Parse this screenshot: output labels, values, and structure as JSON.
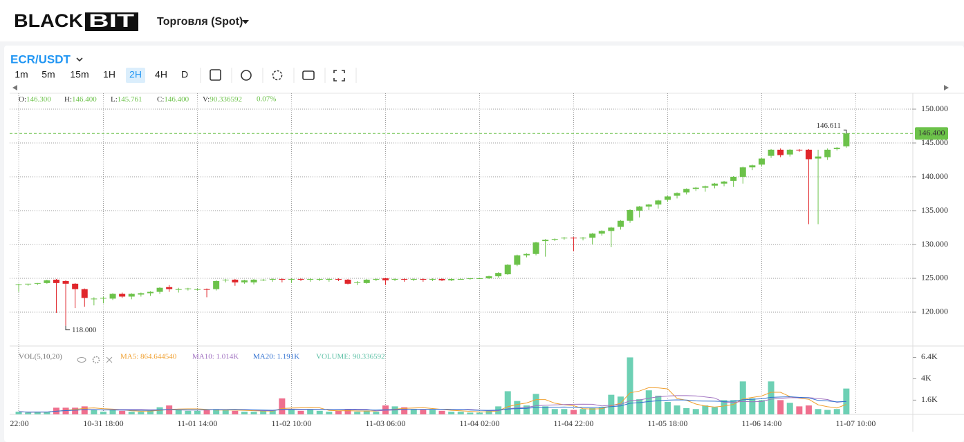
{
  "header": {
    "logo_a": "BLACK",
    "logo_b": "BIT",
    "menu": "Торговля (Spot)"
  },
  "pair": "ECR/USDT",
  "intervals": [
    "1m",
    "5m",
    "15m",
    "1H",
    "2H",
    "4H",
    "D"
  ],
  "active_interval": "2H",
  "chart_data": {
    "type": "candlestick",
    "up_color": "#6cc24a",
    "down_color": "#e0262b",
    "legend": [
      {
        "label": "O:",
        "value": "146.300"
      },
      {
        "label": "H:",
        "value": "146.400"
      },
      {
        "label": "L:",
        "value": "145.761"
      },
      {
        "label": "C:",
        "value": "146.400"
      },
      {
        "label": "V:",
        "value": "90.336592"
      }
    ],
    "change": "0.07%",
    "candles": [
      [
        124.1,
        124.2,
        123.0,
        124.1
      ],
      [
        124.1,
        124.2,
        123.9,
        124.2
      ],
      [
        124.2,
        124.3,
        124.0,
        124.3
      ],
      [
        124.3,
        124.8,
        124.2,
        124.7
      ],
      [
        124.8,
        124.9,
        119.9,
        124.3
      ],
      [
        124.6,
        124.7,
        118.0,
        124.2
      ],
      [
        124.2,
        124.3,
        120.6,
        123.4
      ],
      [
        123.4,
        123.5,
        120.8,
        122.1
      ],
      [
        122.0,
        122.2,
        121.0,
        122.0
      ],
      [
        122.0,
        122.3,
        121.3,
        122.1
      ],
      [
        122.0,
        122.8,
        121.8,
        122.7
      ],
      [
        122.7,
        122.9,
        122.1,
        122.3
      ],
      [
        122.3,
        122.8,
        121.9,
        122.7
      ],
      [
        122.6,
        122.9,
        122.3,
        122.8
      ],
      [
        122.8,
        123.1,
        122.4,
        123.0
      ],
      [
        123.0,
        123.7,
        122.7,
        123.6
      ],
      [
        123.7,
        124.0,
        123.0,
        123.4
      ],
      [
        123.3,
        123.6,
        122.9,
        123.4
      ],
      [
        123.4,
        123.6,
        123.2,
        123.5
      ],
      [
        123.4,
        123.5,
        123.2,
        123.4
      ],
      [
        123.4,
        123.5,
        122.2,
        123.3
      ],
      [
        123.4,
        124.7,
        123.2,
        124.6
      ],
      [
        124.7,
        124.9,
        124.4,
        124.8
      ],
      [
        124.8,
        124.9,
        123.9,
        124.4
      ],
      [
        124.4,
        124.8,
        124.2,
        124.7
      ],
      [
        124.4,
        124.9,
        124.1,
        124.8
      ],
      [
        124.8,
        124.9,
        124.6,
        124.8
      ],
      [
        124.8,
        125.0,
        124.5,
        124.9
      ],
      [
        124.9,
        125.0,
        124.4,
        124.8
      ],
      [
        124.8,
        125.0,
        124.3,
        124.9
      ],
      [
        124.9,
        125.0,
        124.6,
        124.8
      ],
      [
        124.8,
        125.0,
        124.5,
        124.9
      ],
      [
        124.9,
        125.0,
        124.6,
        124.9
      ],
      [
        124.9,
        125.0,
        124.5,
        124.9
      ],
      [
        124.9,
        125.0,
        124.6,
        124.8
      ],
      [
        124.8,
        124.9,
        124.1,
        124.2
      ],
      [
        124.4,
        124.6,
        124.0,
        124.4
      ],
      [
        124.3,
        124.9,
        124.2,
        124.8
      ],
      [
        124.8,
        125.0,
        124.6,
        124.9
      ],
      [
        125.0,
        125.1,
        124.0,
        124.7
      ],
      [
        124.8,
        125.0,
        124.6,
        124.9
      ],
      [
        124.9,
        125.0,
        124.5,
        124.8
      ],
      [
        124.8,
        125.0,
        124.6,
        124.9
      ],
      [
        124.9,
        125.0,
        124.5,
        124.8
      ],
      [
        124.8,
        125.0,
        124.6,
        124.9
      ],
      [
        124.9,
        125.0,
        124.6,
        124.7
      ],
      [
        124.7,
        125.0,
        124.6,
        124.9
      ],
      [
        124.9,
        125.0,
        124.8,
        124.9
      ],
      [
        124.9,
        125.0,
        124.8,
        125.0
      ],
      [
        125.0,
        125.1,
        124.9,
        125.0
      ],
      [
        125.0,
        125.4,
        124.9,
        125.3
      ],
      [
        125.3,
        125.9,
        125.1,
        125.8
      ],
      [
        125.6,
        127.1,
        125.5,
        127.0
      ],
      [
        127.0,
        128.5,
        126.8,
        128.4
      ],
      [
        128.4,
        128.7,
        128.1,
        128.6
      ],
      [
        128.6,
        130.4,
        128.4,
        130.3
      ],
      [
        130.5,
        130.8,
        128.2,
        130.7
      ],
      [
        130.7,
        130.9,
        130.5,
        130.8
      ],
      [
        130.9,
        131.1,
        130.7,
        131.0
      ],
      [
        131.0,
        131.1,
        129.0,
        130.9
      ],
      [
        130.9,
        131.1,
        130.6,
        131.0
      ],
      [
        131.0,
        131.7,
        130.0,
        131.6
      ],
      [
        131.6,
        132.1,
        131.3,
        132.0
      ],
      [
        132.0,
        132.6,
        129.6,
        132.5
      ],
      [
        132.6,
        133.6,
        132.2,
        133.5
      ],
      [
        133.5,
        135.2,
        133.2,
        135.1
      ],
      [
        135.0,
        135.7,
        134.0,
        135.6
      ],
      [
        135.6,
        136.0,
        135.1,
        135.9
      ],
      [
        135.9,
        136.6,
        135.3,
        136.5
      ],
      [
        136.6,
        137.2,
        136.3,
        137.1
      ],
      [
        137.2,
        137.7,
        136.8,
        137.6
      ],
      [
        137.7,
        138.3,
        137.4,
        138.2
      ],
      [
        138.2,
        138.5,
        137.9,
        138.4
      ],
      [
        138.4,
        138.7,
        137.8,
        138.6
      ],
      [
        138.7,
        139.1,
        138.3,
        139.0
      ],
      [
        139.0,
        139.4,
        138.6,
        139.3
      ],
      [
        139.4,
        140.1,
        138.5,
        140.0
      ],
      [
        140.0,
        141.5,
        139.0,
        141.4
      ],
      [
        141.4,
        141.8,
        141.0,
        141.7
      ],
      [
        141.8,
        142.8,
        141.5,
        142.7
      ],
      [
        143.1,
        144.1,
        142.8,
        144.0
      ],
      [
        144.0,
        144.2,
        142.9,
        143.2
      ],
      [
        143.3,
        144.1,
        143.0,
        144.0
      ],
      [
        144.0,
        144.1,
        143.7,
        143.9
      ],
      [
        144.0,
        144.1,
        133.0,
        142.6
      ],
      [
        142.7,
        144.0,
        133.0,
        143.0
      ],
      [
        142.9,
        144.2,
        142.5,
        144.0
      ],
      [
        144.1,
        144.4,
        143.9,
        144.3
      ],
      [
        144.5,
        146.611,
        144.3,
        146.4
      ]
    ],
    "xlim": [
      -0.96,
      95.07
    ],
    "xticks": [
      {
        "value": 0,
        "label": "22:00"
      },
      {
        "value": 9,
        "label": "10-31 18:00"
      },
      {
        "value": 19,
        "label": "11-01 14:00"
      },
      {
        "value": 29,
        "label": "11-02 10:00"
      },
      {
        "value": 39,
        "label": "11-03 06:00"
      },
      {
        "value": 49,
        "label": "11-04 02:00"
      },
      {
        "value": 59,
        "label": "11-04 22:00"
      },
      {
        "value": 69,
        "label": "11-05 18:00"
      },
      {
        "value": 79,
        "label": "11-06 14:00"
      },
      {
        "value": 89,
        "label": "11-07 10:00"
      }
    ],
    "ylim": [
      115.1,
      152.35
    ],
    "yticks": [
      {
        "value": 120,
        "label": "120.000"
      },
      {
        "value": 125,
        "label": "125.000"
      },
      {
        "value": 130,
        "label": "130.000"
      },
      {
        "value": 135,
        "label": "135.000"
      },
      {
        "value": 140,
        "label": "140.000"
      },
      {
        "value": 145,
        "label": "145.000"
      },
      {
        "value": 150,
        "label": "150.000"
      }
    ],
    "grid": true,
    "last_price": {
      "value": 146.4,
      "label": "146.400"
    },
    "high_marker": {
      "value": 146.611,
      "label": "146.611"
    },
    "low_marker": {
      "value": 118.0,
      "label": "118.000"
    },
    "volume": {
      "up_color": "#6dd0b4",
      "down_color": "#ef6f8e",
      "values": [
        300,
        200,
        300,
        250,
        750,
        750,
        750,
        900,
        500,
        300,
        500,
        400,
        300,
        300,
        400,
        800,
        1000,
        500,
        400,
        400,
        500,
        600,
        500,
        400,
        300,
        300,
        400,
        500,
        1800,
        600,
        400,
        500,
        400,
        300,
        400,
        500,
        300,
        400,
        300,
        1000,
        900,
        800,
        600,
        500,
        500,
        400,
        300,
        300,
        200,
        200,
        400,
        900,
        2600,
        1500,
        1000,
        2300,
        900,
        600,
        600,
        500,
        600,
        700,
        800,
        2200,
        2000,
        6400,
        1700,
        2700,
        2100,
        1400,
        1000,
        700,
        600,
        1000,
        800,
        1600,
        1600,
        3700,
        1800,
        1600,
        3700,
        1600,
        1300,
        900,
        1000,
        600,
        500,
        600,
        2900
      ],
      "ylim": [
        0,
        7600
      ],
      "yticks": [
        {
          "value": 1600,
          "label": "1.6K"
        },
        {
          "value": 4000,
          "label": "4K"
        },
        {
          "value": 6400,
          "label": "6.4K"
        }
      ],
      "title": "VOL(5,10,20)",
      "ma": [
        {
          "label": "MA5: 864.644540",
          "period": 5,
          "color": "#f0a030"
        },
        {
          "label": "MA10: 1.014K",
          "period": 10,
          "color": "#a070c0"
        },
        {
          "label": "MA20: 1.191K",
          "period": 20,
          "color": "#3070d0"
        }
      ],
      "current": {
        "label": "VOLUME: 90.336592",
        "color": "#5cc0a5"
      }
    }
  }
}
